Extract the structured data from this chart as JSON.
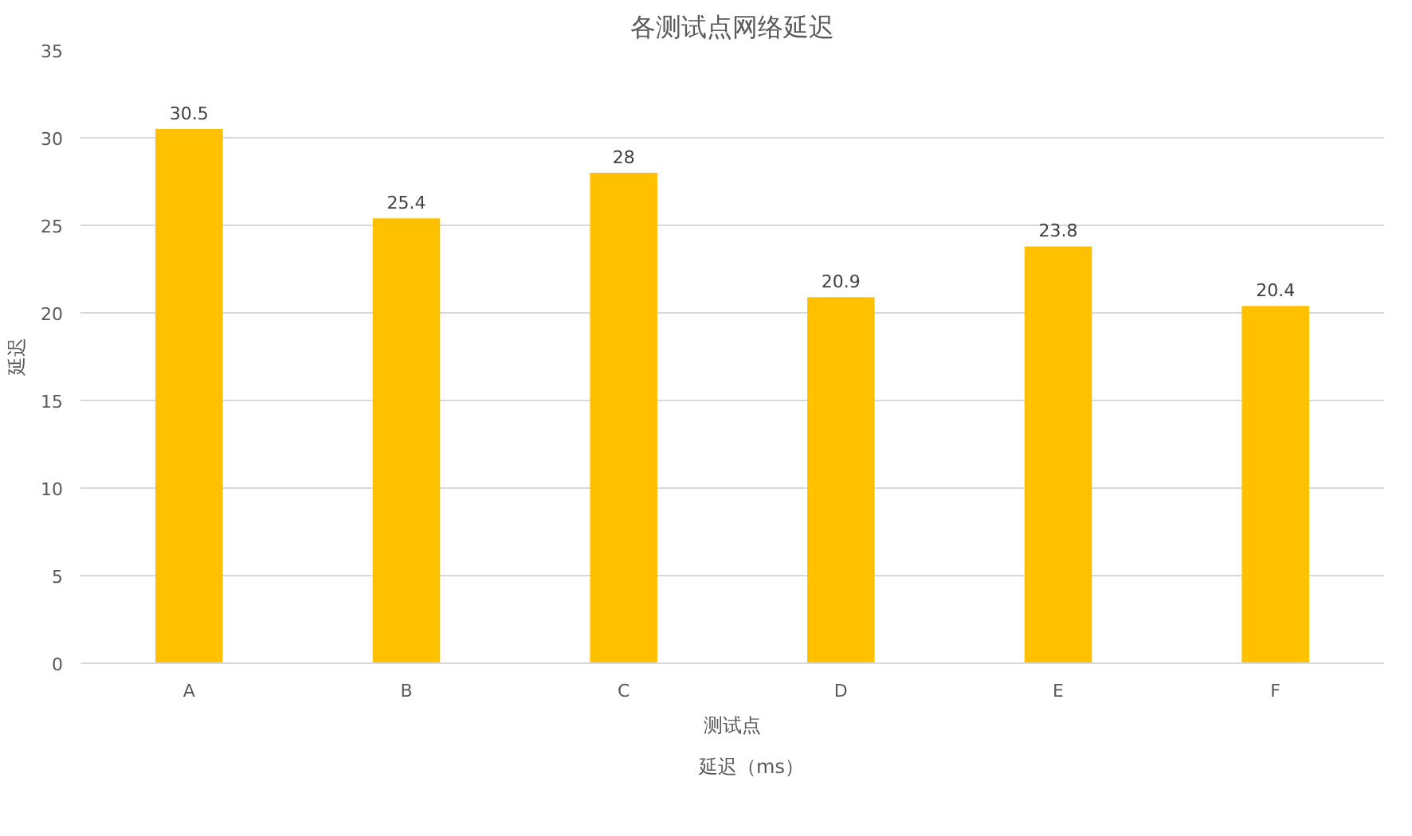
{
  "chart_data": {
    "type": "bar",
    "title": "各测试点网络延迟",
    "xlabel": "测试点",
    "ylabel": "延迟",
    "categories": [
      "A",
      "B",
      "C",
      "D",
      "E",
      "F"
    ],
    "series": [
      {
        "name": "延迟（ms）",
        "color": "#ffc000",
        "values": [
          30.5,
          25.4,
          28,
          20.9,
          23.8,
          20.4
        ]
      }
    ],
    "ylim": [
      0,
      35
    ],
    "yticks": [
      0,
      5,
      10,
      15,
      20,
      25,
      30,
      35
    ],
    "grid": "y",
    "legend": "bottom",
    "data_labels": true
  }
}
